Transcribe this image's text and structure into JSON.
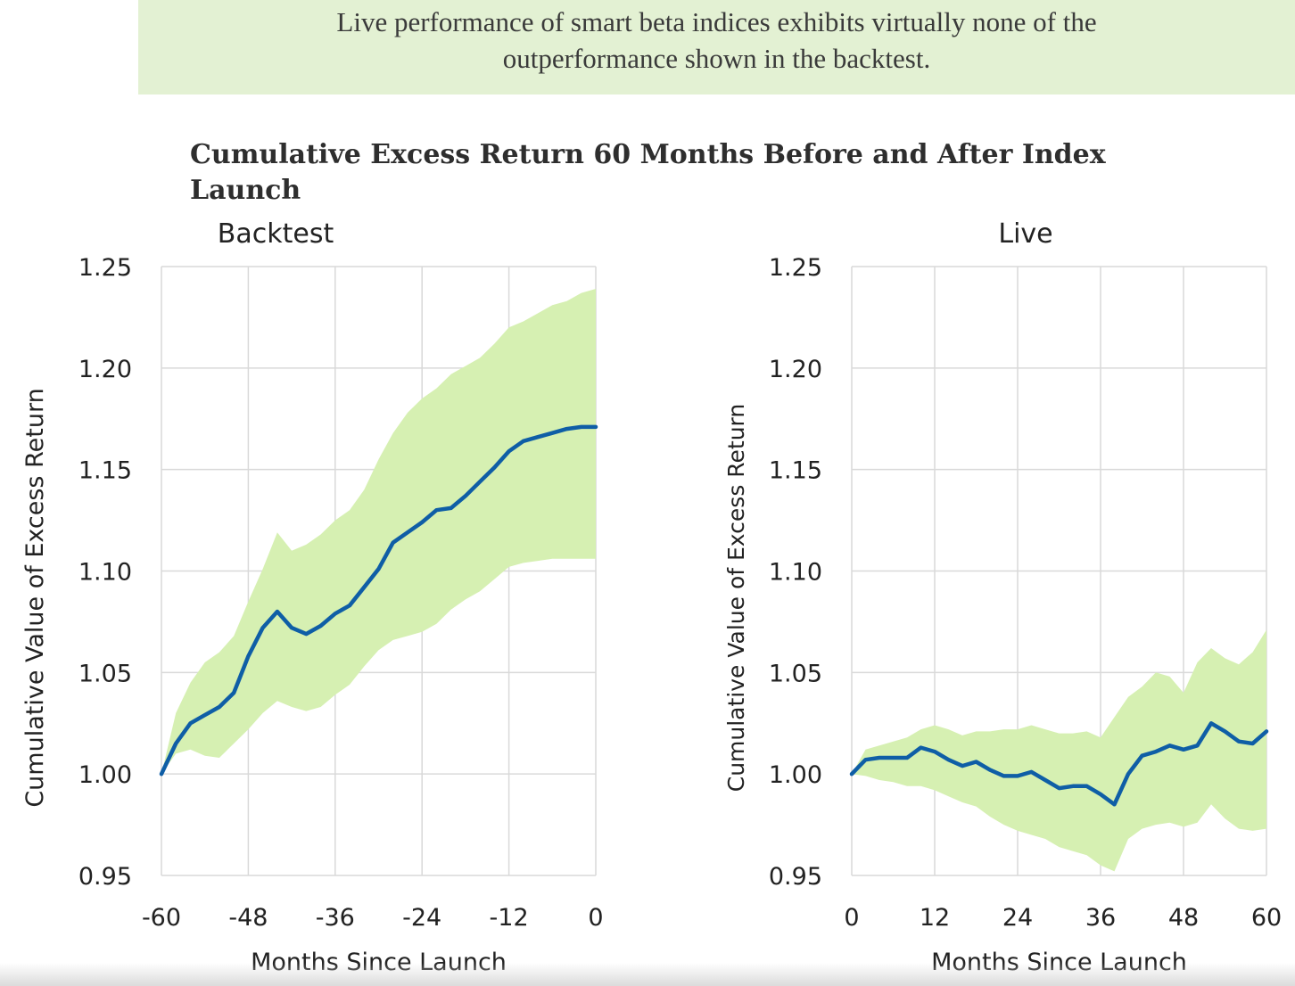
{
  "header": {
    "takeaway_line1": "Live performance of smart beta indices exhibits virtually none of the",
    "takeaway_line2": "outperformance shown in the backtest."
  },
  "title_line1": "Cumulative Excess Return 60 Months Before and After Index",
  "title_line2": "Launch",
  "colors": {
    "line": "#0f5ea6",
    "band": "#d6f0b2",
    "grid": "#d9d9d9",
    "text": "#222222"
  },
  "chart_data": [
    {
      "type": "line",
      "panel_title": "Backtest",
      "xlabel": "Months Since Launch",
      "ylabel": "Cumulative Value of Excess Return",
      "xlim": [
        -60,
        0
      ],
      "ylim": [
        0.95,
        1.25
      ],
      "xticks": [
        "-60",
        "-48",
        "-36",
        "-24",
        "-12",
        "0"
      ],
      "yticks": [
        "0.95",
        "1.00",
        "1.05",
        "1.10",
        "1.15",
        "1.20",
        "1.25"
      ],
      "x": [
        -60,
        -58,
        -56,
        -54,
        -52,
        -50,
        -48,
        -46,
        -44,
        -42,
        -40,
        -38,
        -36,
        -34,
        -32,
        -30,
        -28,
        -26,
        -24,
        -22,
        -20,
        -18,
        -16,
        -14,
        -12,
        -10,
        -8,
        -6,
        -4,
        -2,
        0
      ],
      "series": [
        {
          "role": "average",
          "values": [
            1.0,
            1.015,
            1.025,
            1.029,
            1.033,
            1.04,
            1.058,
            1.072,
            1.08,
            1.072,
            1.069,
            1.073,
            1.079,
            1.083,
            1.092,
            1.101,
            1.114,
            1.119,
            1.124,
            1.13,
            1.131,
            1.137,
            1.144,
            1.151,
            1.159,
            1.164,
            1.166,
            1.168,
            1.17,
            1.171,
            1.171
          ]
        },
        {
          "role": "band_upper",
          "values": [
            1.0,
            1.03,
            1.045,
            1.055,
            1.06,
            1.068,
            1.085,
            1.101,
            1.119,
            1.11,
            1.113,
            1.118,
            1.125,
            1.13,
            1.14,
            1.155,
            1.168,
            1.178,
            1.185,
            1.19,
            1.197,
            1.201,
            1.205,
            1.212,
            1.22,
            1.223,
            1.227,
            1.231,
            1.233,
            1.237,
            1.239
          ]
        },
        {
          "role": "band_lower",
          "values": [
            1.0,
            1.01,
            1.012,
            1.009,
            1.008,
            1.015,
            1.022,
            1.03,
            1.036,
            1.033,
            1.031,
            1.033,
            1.039,
            1.044,
            1.053,
            1.061,
            1.066,
            1.068,
            1.07,
            1.074,
            1.081,
            1.086,
            1.09,
            1.096,
            1.102,
            1.104,
            1.105,
            1.106,
            1.106,
            1.106,
            1.106
          ]
        }
      ]
    },
    {
      "type": "line",
      "panel_title": "Live",
      "xlabel": "Months Since Launch",
      "ylabel": "Cumulative Value of Excess Return",
      "xlim": [
        0,
        60
      ],
      "ylim": [
        0.95,
        1.25
      ],
      "xticks": [
        "0",
        "12",
        "24",
        "36",
        "48",
        "60"
      ],
      "yticks": [
        "0.95",
        "1.00",
        "1.05",
        "1.10",
        "1.15",
        "1.20",
        "1.25"
      ],
      "x": [
        0,
        2,
        4,
        6,
        8,
        10,
        12,
        14,
        16,
        18,
        20,
        22,
        24,
        26,
        28,
        30,
        32,
        34,
        36,
        38,
        40,
        42,
        44,
        46,
        48,
        50,
        52,
        54,
        56,
        58,
        60
      ],
      "series": [
        {
          "role": "average",
          "values": [
            1.0,
            1.007,
            1.008,
            1.008,
            1.008,
            1.013,
            1.011,
            1.007,
            1.004,
            1.006,
            1.002,
            0.999,
            0.999,
            1.001,
            0.997,
            0.993,
            0.994,
            0.994,
            0.99,
            0.985,
            1.0,
            1.009,
            1.011,
            1.014,
            1.012,
            1.014,
            1.025,
            1.021,
            1.016,
            1.015,
            1.021
          ]
        },
        {
          "role": "band_upper",
          "values": [
            1.0,
            1.012,
            1.014,
            1.016,
            1.018,
            1.022,
            1.024,
            1.022,
            1.019,
            1.021,
            1.021,
            1.022,
            1.022,
            1.024,
            1.022,
            1.02,
            1.02,
            1.021,
            1.018,
            1.028,
            1.038,
            1.043,
            1.05,
            1.048,
            1.04,
            1.055,
            1.062,
            1.057,
            1.054,
            1.06,
            1.071
          ]
        },
        {
          "role": "band_lower",
          "values": [
            1.0,
            0.999,
            0.997,
            0.996,
            0.994,
            0.994,
            0.992,
            0.989,
            0.986,
            0.984,
            0.979,
            0.975,
            0.972,
            0.97,
            0.968,
            0.964,
            0.962,
            0.96,
            0.955,
            0.952,
            0.968,
            0.973,
            0.975,
            0.976,
            0.974,
            0.976,
            0.985,
            0.978,
            0.973,
            0.972,
            0.973
          ]
        }
      ]
    }
  ]
}
